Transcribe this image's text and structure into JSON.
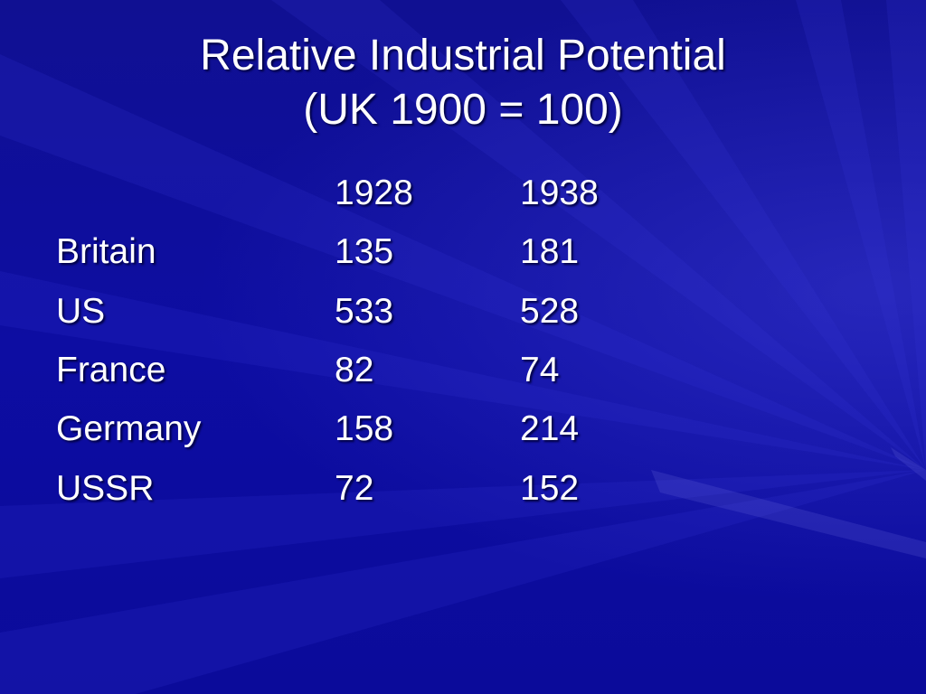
{
  "slide": {
    "title_line1": "Relative Industrial Potential",
    "title_line2": "(UK 1900 = 100)"
  },
  "table": {
    "columns": [
      "1928",
      "1938"
    ],
    "rows": [
      {
        "country": "Britain",
        "values": [
          "135",
          "181"
        ]
      },
      {
        "country": "US",
        "values": [
          "533",
          "528"
        ]
      },
      {
        "country": "France",
        "values": [
          "82",
          "74"
        ]
      },
      {
        "country": "Germany",
        "values": [
          "158",
          "214"
        ]
      },
      {
        "country": "USSR",
        "values": [
          "72",
          "152"
        ]
      }
    ]
  },
  "colors": {
    "background": "#0f0f9a",
    "text": "#ffffff"
  }
}
